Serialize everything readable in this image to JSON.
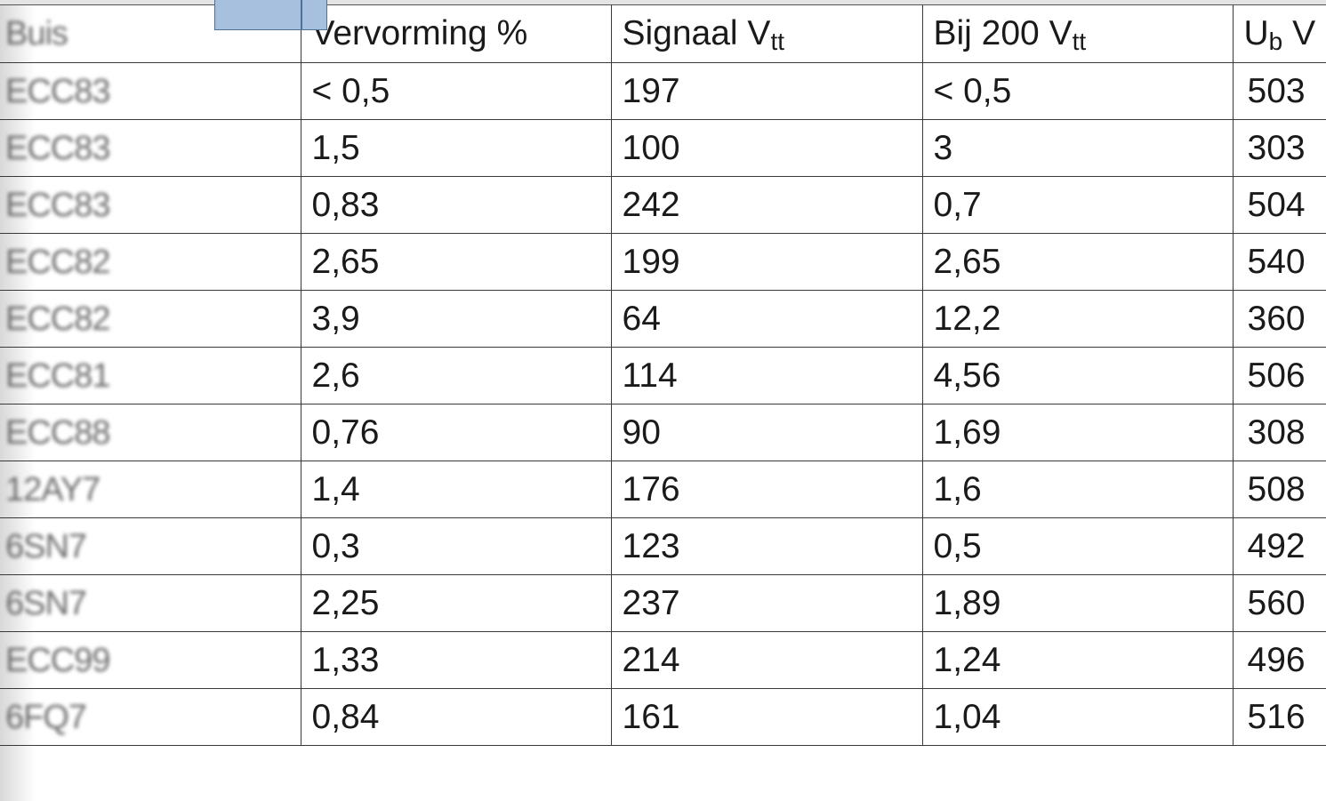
{
  "table": {
    "headers": [
      {
        "main": "Buis",
        "sub": ""
      },
      {
        "main": "Vervorming %",
        "sub": ""
      },
      {
        "main": "Signaal V",
        "sub": "tt"
      },
      {
        "main": "Bij 200 V",
        "sub": "tt"
      },
      {
        "main": "U",
        "sub": "b",
        "after": " V"
      }
    ],
    "rows": [
      [
        "ECC83",
        "< 0,5",
        "197",
        "< 0,5",
        "503"
      ],
      [
        "ECC83",
        "1,5",
        "100",
        "3",
        "303"
      ],
      [
        "ECC83",
        "0,83",
        "242",
        "0,7",
        "504"
      ],
      [
        "ECC82",
        "2,65",
        "199",
        "2,65",
        "540"
      ],
      [
        "ECC82",
        "3,9",
        "64",
        "12,2",
        "360"
      ],
      [
        "ECC81",
        "2,6",
        "114",
        "4,56",
        "506"
      ],
      [
        "ECC88",
        "0,76",
        "90",
        "1,69",
        "308"
      ],
      [
        "12AY7",
        "1,4",
        "176",
        "1,6",
        "508"
      ],
      [
        "6SN7",
        "0,3",
        "123",
        "0,5",
        "492"
      ],
      [
        "6SN7",
        "2,25",
        "237",
        "1,89",
        "560"
      ],
      [
        "ECC99",
        "1,33",
        "214",
        "1,24",
        "496"
      ],
      [
        "6FQ7",
        "0,84",
        "161",
        "1,04",
        "516"
      ]
    ]
  }
}
